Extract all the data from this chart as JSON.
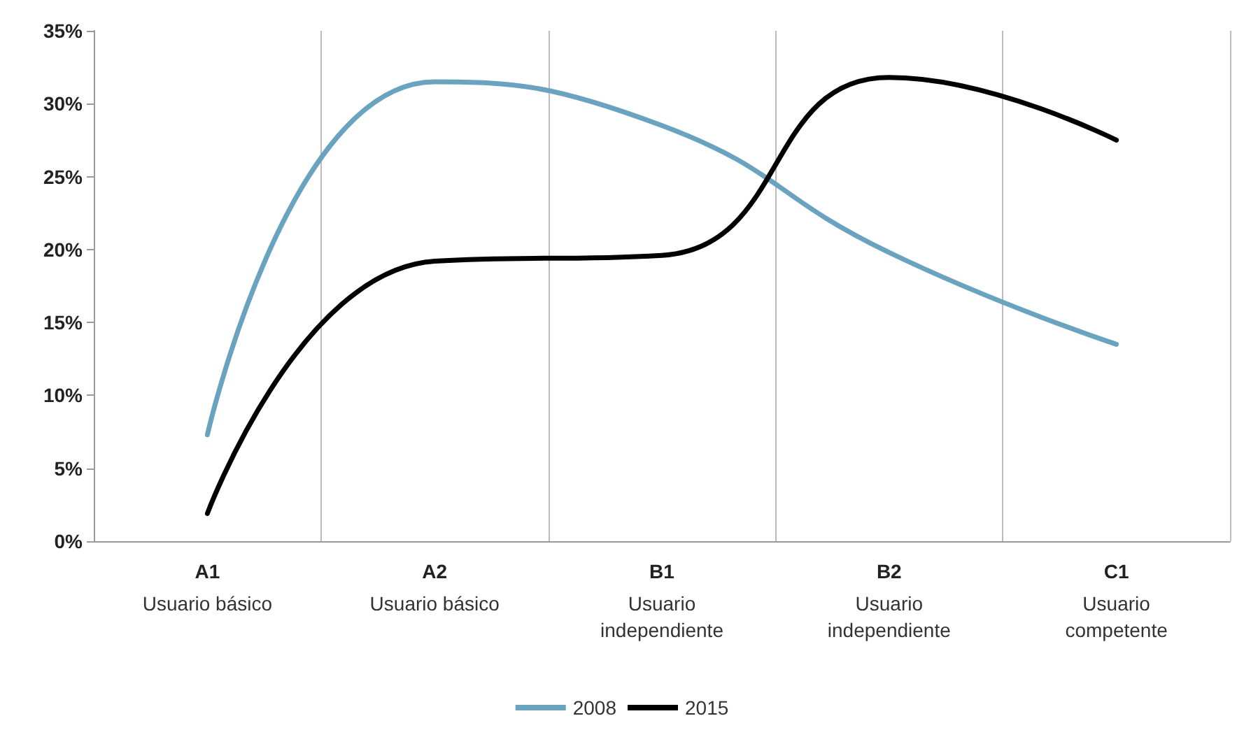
{
  "chart_data": {
    "type": "line",
    "categories": [
      "A1\nUsuario básico",
      "A2\nUsuario básico",
      "B1\nUsuario\nindependiente",
      "B2\nUsuario\nindependiente",
      "C1\nUsuario\ncompetente"
    ],
    "series": [
      {
        "name": "2008",
        "color": "#6aa3c0",
        "values": [
          7.3,
          31.5,
          28.5,
          19.8,
          13.5
        ]
      },
      {
        "name": "2015",
        "color": "#000000",
        "values": [
          1.9,
          19.2,
          19.6,
          31.8,
          27.5
        ]
      }
    ],
    "ylim": [
      0,
      35
    ],
    "yticks": [
      {
        "value": 0,
        "label": "0%"
      },
      {
        "value": 5,
        "label": "5%"
      },
      {
        "value": 10,
        "label": "10%"
      },
      {
        "value": 15,
        "label": "15%"
      },
      {
        "value": 20,
        "label": "20%"
      },
      {
        "value": 25,
        "label": "25%"
      },
      {
        "value": 30,
        "label": "30%"
      },
      {
        "value": 35,
        "label": "35%"
      }
    ],
    "grid": false,
    "legend": "bottom",
    "marker": "none",
    "line_style": "solid"
  }
}
